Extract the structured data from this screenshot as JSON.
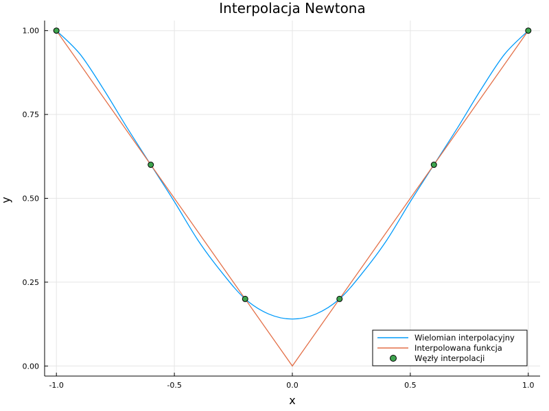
{
  "chart_data": {
    "type": "line",
    "title": "Interpolacja Newtona",
    "xlabel": "x",
    "ylabel": "y",
    "xlim": [
      -1.05,
      1.05
    ],
    "ylim": [
      -0.03,
      1.03
    ],
    "grid": true,
    "legend_position": "bottom-right",
    "x_ticks": [
      {
        "value": -1.0,
        "label": "-1.0"
      },
      {
        "value": -0.5,
        "label": "-0.5"
      },
      {
        "value": 0.0,
        "label": "0.0"
      },
      {
        "value": 0.5,
        "label": "0.5"
      },
      {
        "value": 1.0,
        "label": "1.0"
      }
    ],
    "y_ticks": [
      {
        "value": 0.0,
        "label": "0.00"
      },
      {
        "value": 0.25,
        "label": "0.25"
      },
      {
        "value": 0.5,
        "label": "0.50"
      },
      {
        "value": 0.75,
        "label": "0.75"
      },
      {
        "value": 1.0,
        "label": "1.00"
      }
    ],
    "series": [
      {
        "name": "Wielomian interpolacyjny",
        "kind": "line",
        "color": "#009AFA",
        "x": [
          -1.0,
          -0.9,
          -0.8,
          -0.7,
          -0.6,
          -0.5,
          -0.4,
          -0.3,
          -0.2,
          -0.1,
          0.0,
          0.1,
          0.2,
          0.3,
          0.4,
          0.5,
          0.6,
          0.7,
          0.8,
          0.9,
          1.0
        ],
        "y": [
          1.0,
          0.93,
          0.825,
          0.71,
          0.6,
          0.49,
          0.375,
          0.28,
          0.2,
          0.155,
          0.14,
          0.155,
          0.2,
          0.28,
          0.375,
          0.49,
          0.6,
          0.71,
          0.825,
          0.93,
          1.0
        ]
      },
      {
        "name": "Interpolowana funkcja",
        "kind": "line",
        "color": "#E36F47",
        "x": [
          -1.0,
          0.0,
          1.0
        ],
        "y": [
          1.0,
          0.0,
          1.0
        ]
      },
      {
        "name": "Węzły interpolacji",
        "kind": "scatter",
        "color": "#3EA44E",
        "x": [
          -1.0,
          -0.6,
          -0.2,
          0.2,
          0.6,
          1.0
        ],
        "y": [
          1.0,
          0.6,
          0.2,
          0.2,
          0.6,
          1.0
        ]
      }
    ]
  }
}
